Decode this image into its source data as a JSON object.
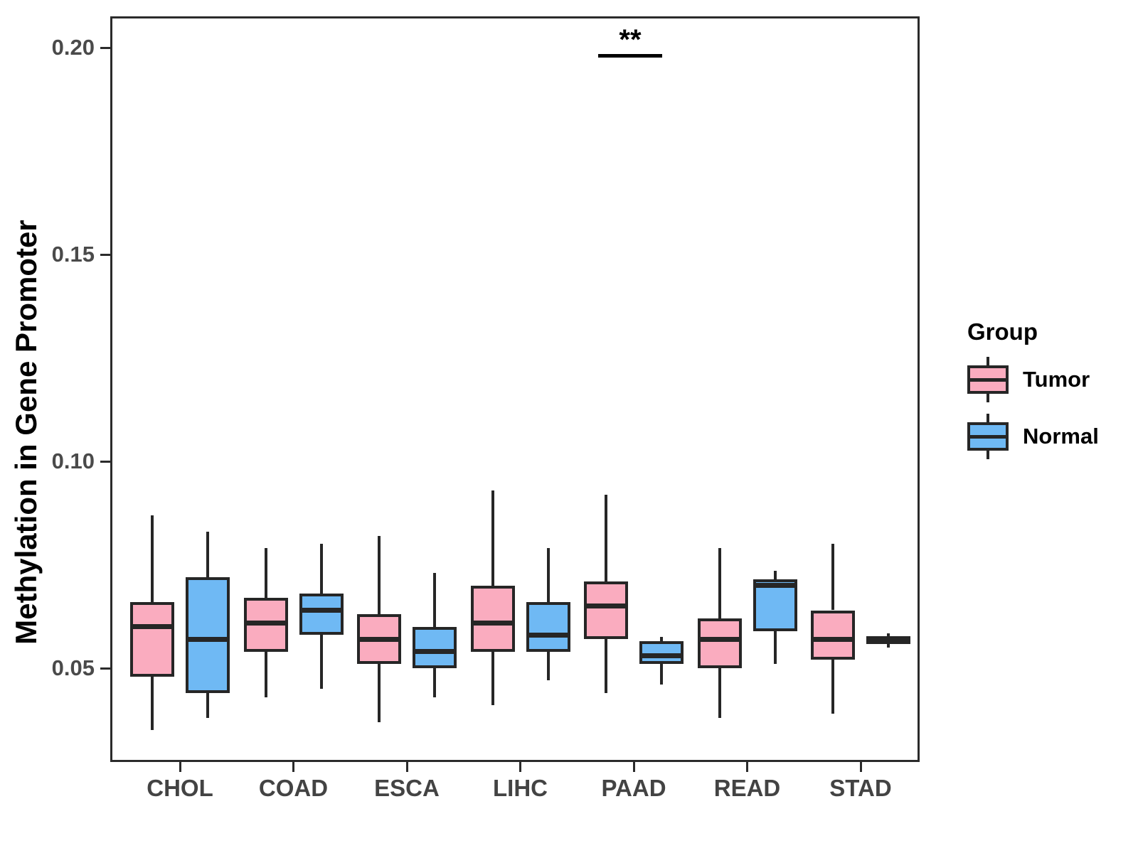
{
  "y_axis": {
    "title": "Methylation in Gene Promoter",
    "ticks": [
      {
        "label": "0.20",
        "value": 0.2
      },
      {
        "label": "0.15",
        "value": 0.15
      },
      {
        "label": "0.10",
        "value": 0.1
      },
      {
        "label": "0.05",
        "value": 0.05
      }
    ]
  },
  "x_axis": {
    "categories": [
      "CHOL",
      "COAD",
      "ESCA",
      "LIHC",
      "PAAD",
      "READ",
      "STAD"
    ]
  },
  "legend": {
    "title": "Group",
    "items": [
      {
        "label": "Tumor",
        "color": "#faacbf"
      },
      {
        "label": "Normal",
        "color": "#6fb9f4"
      }
    ]
  },
  "significance": {
    "label": "**",
    "category": "PAAD",
    "bar_y_value": 0.1985,
    "label_y_value": 0.2015
  },
  "colors": {
    "tumor_fill": "#faacbf",
    "normal_fill": "#6fb9f4",
    "stroke": "#262626",
    "axis_text": "#4a4a4a"
  },
  "chart_data": {
    "type": "boxplot",
    "title": "",
    "xlabel": "",
    "ylabel": "Methylation in Gene Promoter",
    "ylim": [
      0.027,
      0.208
    ],
    "yticks": [
      0.05,
      0.1,
      0.15,
      0.2
    ],
    "grid": false,
    "legend_position": "right",
    "categories": [
      "CHOL",
      "COAD",
      "ESCA",
      "LIHC",
      "PAAD",
      "READ",
      "STAD"
    ],
    "series": [
      {
        "name": "Tumor",
        "color": "#faacbf",
        "boxes": [
          {
            "min": 0.035,
            "q1": 0.048,
            "median": 0.06,
            "q3": 0.066,
            "max": 0.087
          },
          {
            "min": 0.043,
            "q1": 0.054,
            "median": 0.061,
            "q3": 0.067,
            "max": 0.079
          },
          {
            "min": 0.037,
            "q1": 0.051,
            "median": 0.057,
            "q3": 0.063,
            "max": 0.082
          },
          {
            "min": 0.041,
            "q1": 0.054,
            "median": 0.061,
            "q3": 0.07,
            "max": 0.093
          },
          {
            "min": 0.044,
            "q1": 0.057,
            "median": 0.065,
            "q3": 0.071,
            "max": 0.092
          },
          {
            "min": 0.038,
            "q1": 0.05,
            "median": 0.057,
            "q3": 0.062,
            "max": 0.079
          },
          {
            "min": 0.039,
            "q1": 0.052,
            "median": 0.057,
            "q3": 0.064,
            "max": 0.08
          }
        ]
      },
      {
        "name": "Normal",
        "color": "#6fb9f4",
        "boxes": [
          {
            "min": 0.038,
            "q1": 0.044,
            "median": 0.057,
            "q3": 0.072,
            "max": 0.083
          },
          {
            "min": 0.045,
            "q1": 0.058,
            "median": 0.064,
            "q3": 0.068,
            "max": 0.08
          },
          {
            "min": 0.043,
            "q1": 0.05,
            "median": 0.054,
            "q3": 0.06,
            "max": 0.073
          },
          {
            "min": 0.047,
            "q1": 0.054,
            "median": 0.058,
            "q3": 0.066,
            "max": 0.079
          },
          {
            "min": 0.046,
            "q1": 0.051,
            "median": 0.053,
            "q3": 0.0565,
            "max": 0.0575
          },
          {
            "min": 0.051,
            "q1": 0.059,
            "median": 0.07,
            "q3": 0.0715,
            "max": 0.0735
          },
          {
            "min": 0.055,
            "q1": 0.0558,
            "median": 0.0567,
            "q3": 0.0578,
            "max": 0.0585
          }
        ]
      }
    ],
    "annotations": [
      {
        "text": "**",
        "category": "PAAD",
        "y": 0.1985
      }
    ]
  }
}
